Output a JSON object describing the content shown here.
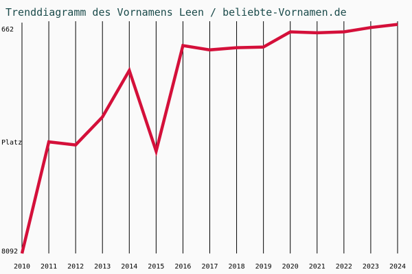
{
  "chart_data": {
    "type": "line",
    "title": "Trenddiagramm des Vornamens Leen / beliebte-Vornamen.de",
    "ylabel": "Platz",
    "y_tick_labels": {
      "top": "662",
      "bottom": "8092"
    },
    "y_reversed": true,
    "ylim": [
      662,
      8092
    ],
    "grid": "vertical",
    "x": [
      2010,
      2011,
      2012,
      2013,
      2014,
      2015,
      2016,
      2017,
      2018,
      2019,
      2020,
      2021,
      2022,
      2023,
      2024
    ],
    "x_tick_labels": [
      "2010",
      "2011",
      "2012",
      "2013",
      "2014",
      "2015",
      "2016",
      "2017",
      "2018",
      "2019",
      "2020",
      "2021",
      "2022",
      "2023",
      "2024"
    ],
    "series": [
      {
        "color": "#d4103a",
        "values": [
          8092,
          4500,
          4600,
          3700,
          2200,
          4800,
          1400,
          1540,
          1470,
          1450,
          960,
          990,
          960,
          820,
          720
        ]
      }
    ]
  }
}
